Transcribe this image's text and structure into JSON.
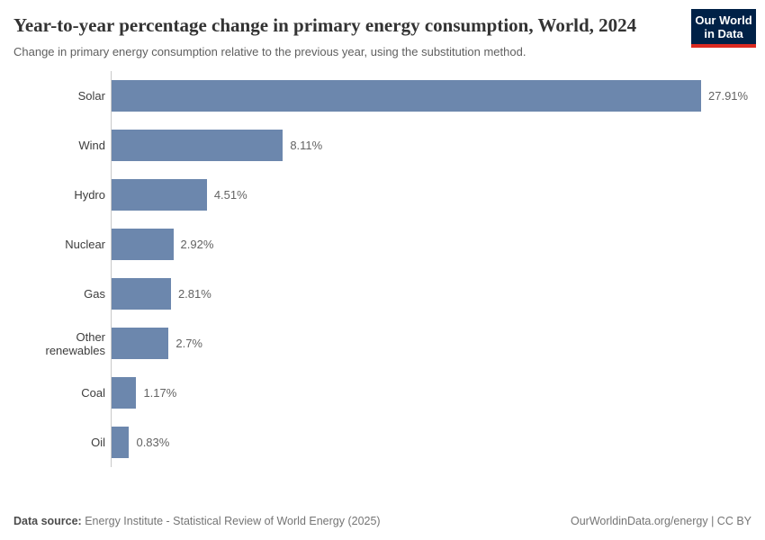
{
  "header": {
    "title": "Year-to-year percentage change in primary energy consumption, World, 2024",
    "subtitle": "Change in primary energy consumption relative to the previous year, using the substitution method.",
    "logo": {
      "line1": "Our World",
      "line2": "in Data",
      "bg_color": "#002147",
      "accent_color": "#dc2a20"
    }
  },
  "chart_data": {
    "type": "bar",
    "orientation": "horizontal",
    "title": "Year-to-year percentage change in primary energy consumption, World, 2024",
    "categories": [
      "Solar",
      "Wind",
      "Hydro",
      "Nuclear",
      "Gas",
      "Other renewables",
      "Coal",
      "Oil"
    ],
    "values": [
      27.91,
      8.11,
      4.51,
      2.92,
      2.81,
      2.7,
      1.17,
      0.83
    ],
    "value_labels": [
      "27.91%",
      "8.11%",
      "4.51%",
      "2.92%",
      "2.81%",
      "2.7%",
      "1.17%",
      "0.83%"
    ],
    "xlabel": "",
    "ylabel": "",
    "xlim": [
      0,
      29
    ],
    "grid": false,
    "legend": false,
    "bar_color": "#6c87ad",
    "axis_color": "#c9c9c9"
  },
  "footer": {
    "datasource_label": "Data source:",
    "datasource_text": " Energy Institute - Statistical Review of World Energy (2025)",
    "rights": "OurWorldinData.org/energy | CC BY"
  }
}
